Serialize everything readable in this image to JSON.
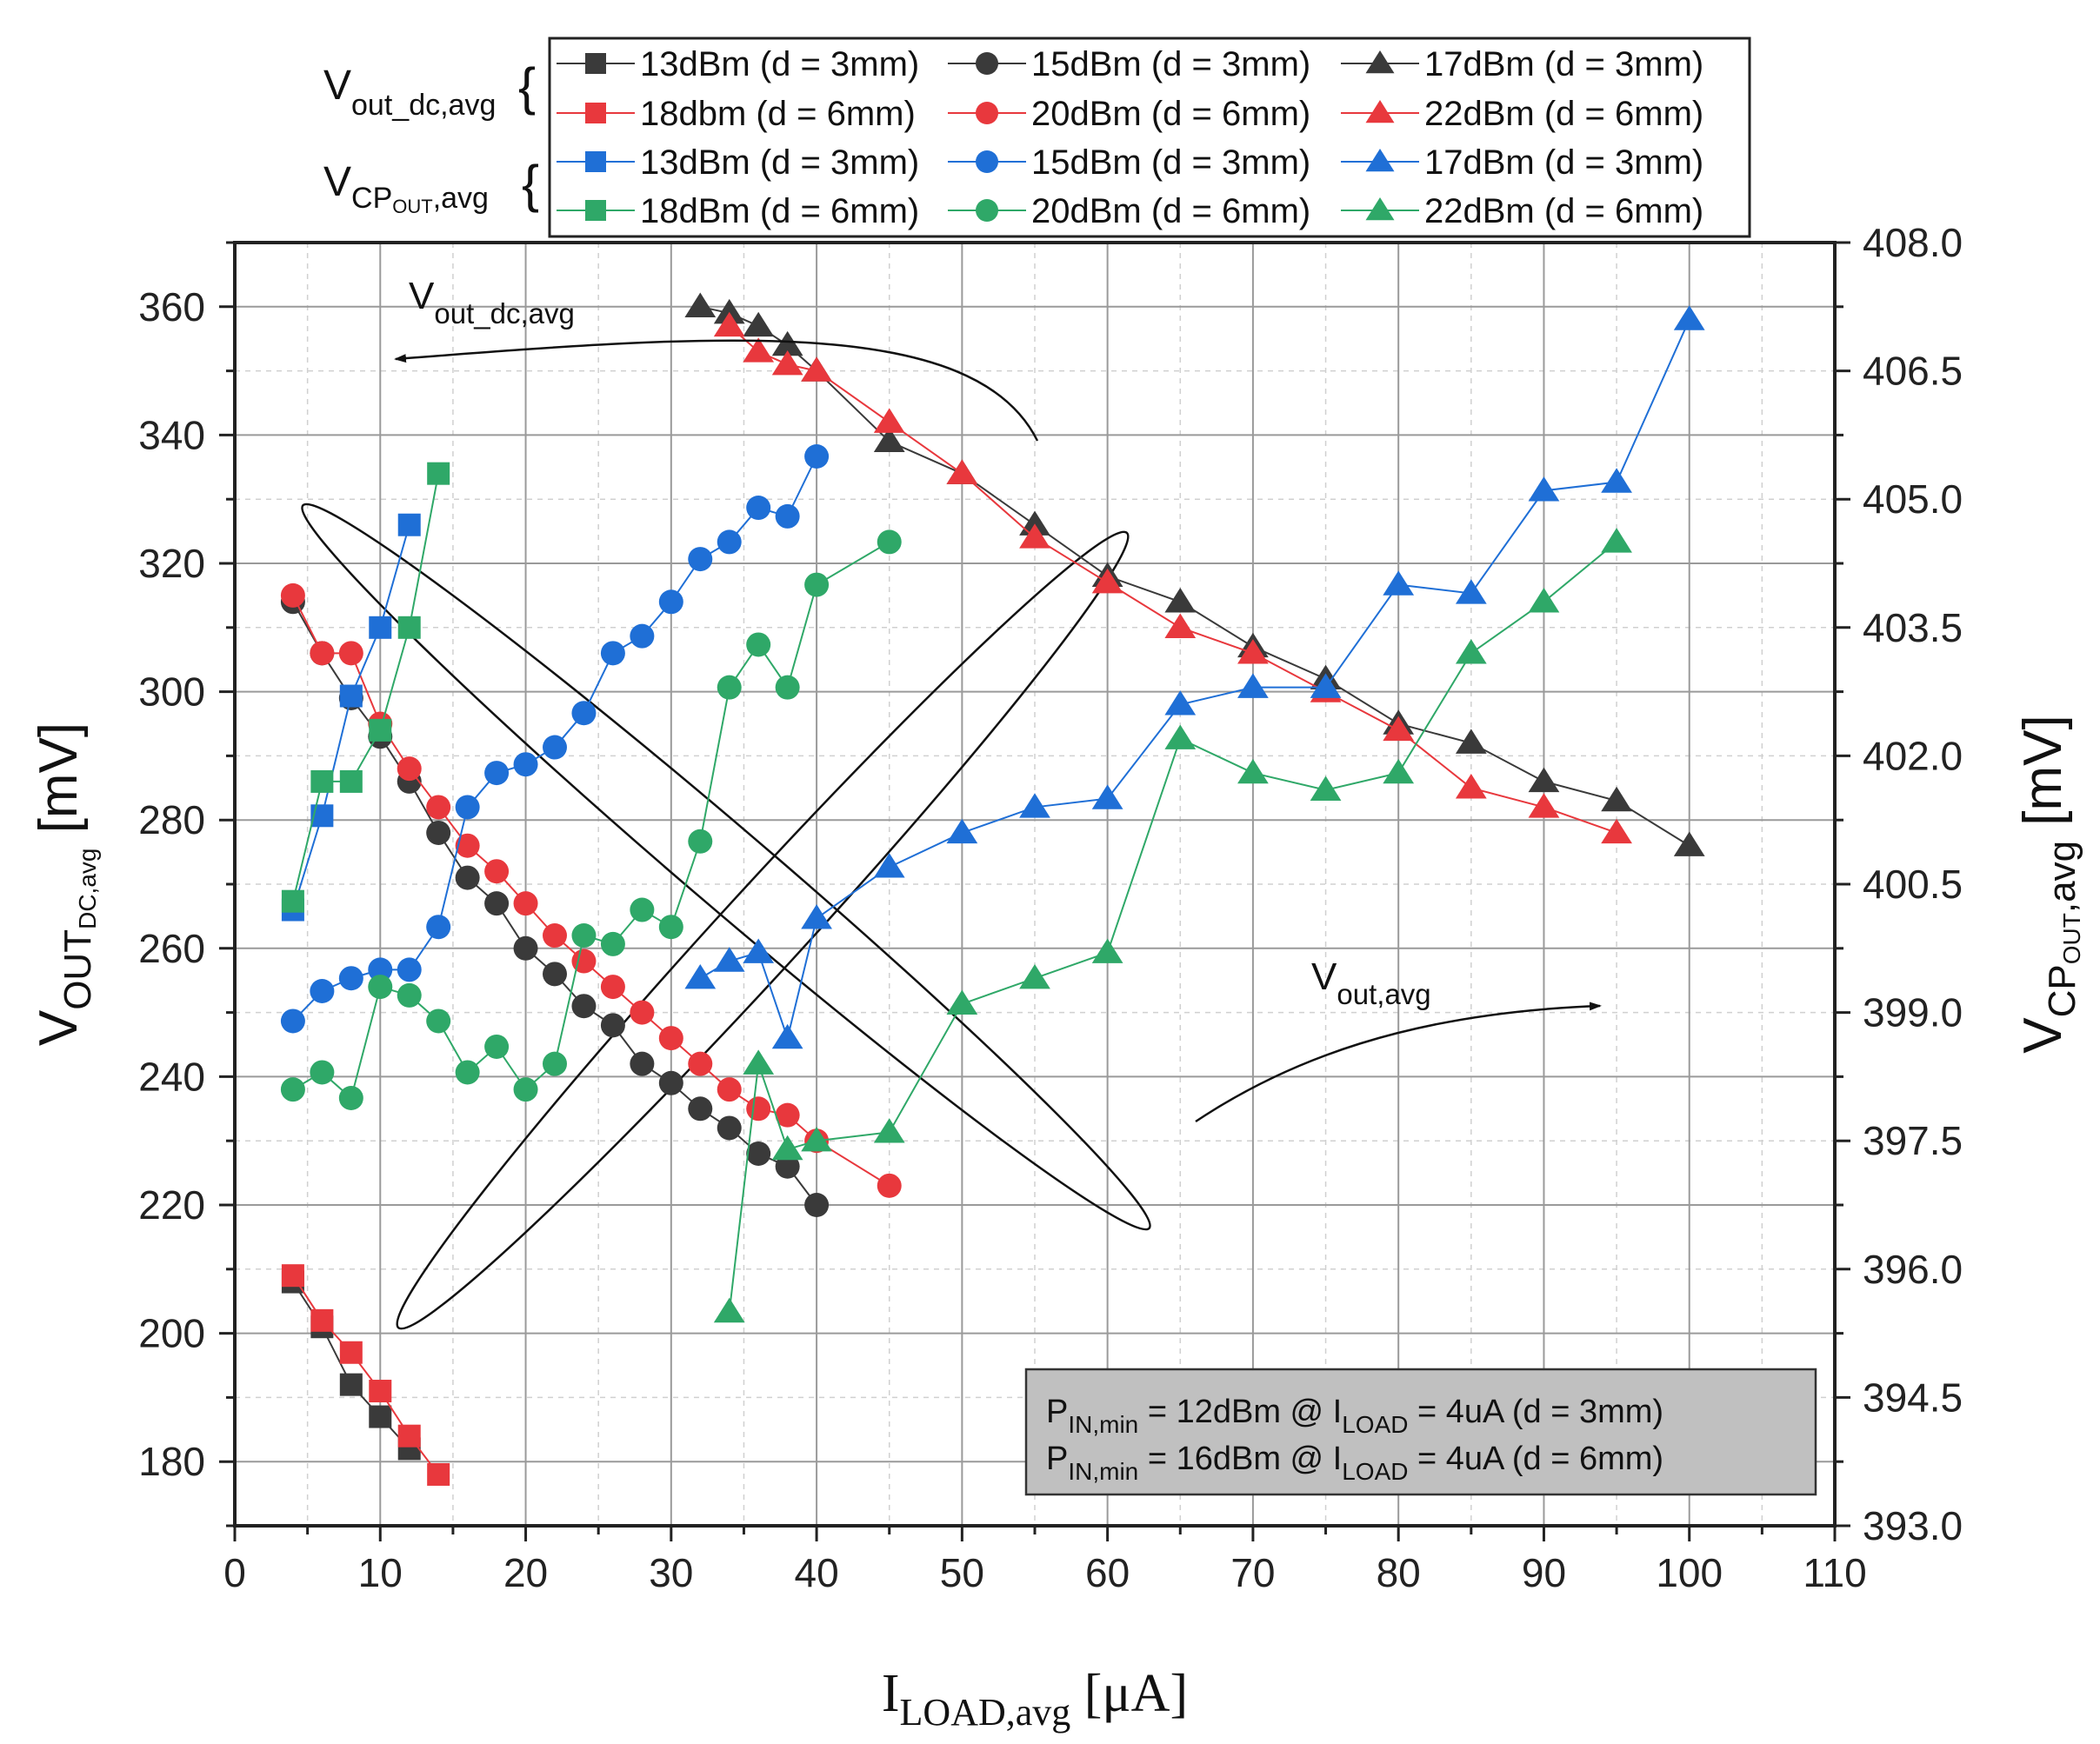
{
  "chart_data": {
    "type": "line",
    "xlabel": {
      "main": "I",
      "sub": "LOAD,avg",
      "unit": " [μA]"
    },
    "ylabel_left": {
      "main": "V",
      "sub1": "OUT",
      "sub2": "DC,avg",
      "unit": " [mV]"
    },
    "ylabel_right": {
      "main": "V",
      "sub1": "CP",
      "sub2": "OUT",
      "sub3": ",avg",
      "unit": " [mV]"
    },
    "xlim": [
      0,
      110
    ],
    "ylim_left": [
      170,
      370
    ],
    "ylim_right": [
      393.0,
      408.0
    ],
    "xticks": [
      "0",
      "10",
      "20",
      "30",
      "40",
      "50",
      "60",
      "70",
      "80",
      "90",
      "100",
      "110"
    ],
    "yticks_left": [
      "180",
      "200",
      "220",
      "240",
      "260",
      "280",
      "300",
      "320",
      "340",
      "360"
    ],
    "yticks_right": [
      "393.0",
      "394.5",
      "396.0",
      "397.5",
      "399.0",
      "400.5",
      "402.0",
      "403.5",
      "405.0",
      "406.5",
      "408.0"
    ],
    "legend": {
      "group1_label": {
        "main": "V",
        "sub": "out_dc,avg"
      },
      "group2_label": {
        "main": "V",
        "sub1": "CP",
        "sub2": "OUT",
        "sub3": ",avg"
      },
      "entries": [
        "13dBm (d = 3mm)",
        "15dBm (d = 3mm)",
        "17dBm (d = 3mm)",
        "18dbm (d = 6mm)",
        "20dBm (d = 6mm)",
        "22dBm (d = 6mm)",
        "13dBm (d = 3mm)",
        "15dBm (d = 3mm)",
        "17dBm (d = 3mm)",
        "18dBm (d = 6mm)",
        "20dBm (d = 6mm)",
        "22dBm (d = 6mm)"
      ]
    },
    "annotations": {
      "vout_dc": {
        "main": "V",
        "sub": "out_dc,avg"
      },
      "vout": {
        "main": "V",
        "sub": "out,avg"
      },
      "box_line1": {
        "a": "P",
        "b": "IN,min",
        "c": " = 12dBm @ I",
        "d": "LOAD",
        "e": " = 4uA (d = 3mm)"
      },
      "box_line2": {
        "a": "P",
        "b": "IN,min",
        "c": " = 16dBm @ I",
        "d": "LOAD",
        "e": " = 4uA (d = 6mm)"
      }
    },
    "colors": {
      "black": "#3a3a3a",
      "red": "#e8383d",
      "blue": "#1f6fd6",
      "green": "#2fa868",
      "box": "#c0c0c0"
    },
    "series": [
      {
        "name": "Vout_dc 13dBm (d = 3mm)",
        "axis": "left",
        "marker": "square",
        "color": "black",
        "x": [
          4,
          6,
          8,
          10,
          12
        ],
        "y": [
          208,
          201,
          192,
          187,
          182
        ]
      },
      {
        "name": "Vout_dc 15dBm (d = 3mm)",
        "axis": "left",
        "marker": "circle",
        "color": "black",
        "x": [
          4,
          6,
          8,
          10,
          12,
          14,
          16,
          18,
          20,
          22,
          24,
          26,
          28,
          30,
          32,
          34,
          36,
          38,
          40
        ],
        "y": [
          314,
          306,
          299,
          293,
          286,
          278,
          271,
          267,
          260,
          256,
          251,
          248,
          242,
          239,
          235,
          232,
          228,
          226,
          220
        ]
      },
      {
        "name": "Vout_dc 17dBm (d = 3mm)",
        "axis": "left",
        "marker": "triangle",
        "color": "black",
        "x": [
          32,
          34,
          36,
          38,
          40,
          45,
          50,
          55,
          60,
          65,
          70,
          75,
          80,
          85,
          90,
          95,
          100
        ],
        "y": [
          360,
          359,
          357,
          354,
          350,
          339,
          334,
          326,
          318,
          314,
          307,
          302,
          295,
          292,
          286,
          283,
          276
        ]
      },
      {
        "name": "Vout_dc 18dbm (d = 6mm)",
        "axis": "left",
        "marker": "square",
        "color": "red",
        "x": [
          4,
          6,
          8,
          10,
          12,
          14
        ],
        "y": [
          209,
          202,
          197,
          191,
          184,
          178
        ]
      },
      {
        "name": "Vout_dc 20dBm (d = 6mm)",
        "axis": "left",
        "marker": "circle",
        "color": "red",
        "x": [
          4,
          6,
          8,
          10,
          12,
          14,
          16,
          18,
          20,
          22,
          24,
          26,
          28,
          30,
          32,
          34,
          36,
          38,
          40,
          45
        ],
        "y": [
          315,
          306,
          306,
          295,
          288,
          282,
          276,
          272,
          267,
          262,
          258,
          254,
          250,
          246,
          242,
          238,
          235,
          234,
          230,
          223
        ]
      },
      {
        "name": "Vout_dc 22dBm (d = 6mm)",
        "axis": "left",
        "marker": "triangle",
        "color": "red",
        "x": [
          34,
          36,
          38,
          40,
          45,
          50,
          55,
          60,
          65,
          70,
          75,
          80,
          85,
          90,
          95
        ],
        "y": [
          357,
          353,
          351,
          350,
          342,
          334,
          324,
          317,
          310,
          306,
          300,
          294,
          285,
          282,
          278
        ]
      },
      {
        "name": "Vcp 13dBm (d = 3mm)",
        "axis": "right",
        "marker": "square",
        "color": "blue",
        "x": [
          4,
          6,
          8,
          10,
          12
        ],
        "y": [
          400.2,
          401.3,
          402.7,
          403.5,
          404.7
        ]
      },
      {
        "name": "Vcp 15dBm (d = 3mm)",
        "axis": "right",
        "marker": "circle",
        "color": "blue",
        "x": [
          4,
          6,
          8,
          10,
          12,
          14,
          16,
          18,
          20,
          22,
          24,
          26,
          28,
          30,
          32,
          34,
          36,
          38,
          40
        ],
        "y": [
          398.9,
          399.25,
          399.4,
          399.5,
          399.5,
          400.0,
          401.4,
          401.8,
          401.9,
          402.1,
          402.5,
          403.2,
          403.4,
          403.8,
          404.3,
          404.5,
          404.9,
          404.8,
          405.5
        ]
      },
      {
        "name": "Vcp 17dBm (d = 3mm)",
        "axis": "right",
        "marker": "triangle",
        "color": "blue",
        "x": [
          32,
          34,
          36,
          38,
          40,
          45,
          50,
          55,
          60,
          65,
          70,
          75,
          80,
          85,
          90,
          95,
          100
        ],
        "y": [
          399.4,
          399.6,
          399.7,
          398.7,
          400.1,
          400.7,
          401.1,
          401.4,
          401.5,
          402.6,
          402.8,
          402.8,
          404.0,
          403.9,
          405.1,
          405.2,
          407.1
        ]
      },
      {
        "name": "Vcp 18dBm (d = 6mm)",
        "axis": "right",
        "marker": "square",
        "color": "green",
        "x": [
          4,
          6,
          8,
          10,
          12,
          14
        ],
        "y": [
          400.3,
          401.7,
          401.7,
          402.3,
          403.5,
          405.3
        ]
      },
      {
        "name": "Vcp 20dBm (d = 6mm)",
        "axis": "right",
        "marker": "circle",
        "color": "green",
        "x": [
          4,
          6,
          8,
          10,
          12,
          14,
          16,
          18,
          20,
          22,
          24,
          26,
          28,
          30,
          32,
          34,
          36,
          38,
          40,
          45
        ],
        "y": [
          398.1,
          398.3,
          398.0,
          399.3,
          399.2,
          398.9,
          398.3,
          398.6,
          398.1,
          398.4,
          399.9,
          399.8,
          400.2,
          400.0,
          401.0,
          402.8,
          403.3,
          402.8,
          404.0,
          404.5
        ]
      },
      {
        "name": "Vcp 22dBm (d = 6mm)",
        "axis": "right",
        "marker": "triangle",
        "color": "green",
        "x": [
          34,
          36,
          38,
          40,
          45,
          50,
          55,
          60,
          65,
          70,
          75,
          80,
          85,
          90,
          95
        ],
        "y": [
          395.5,
          398.4,
          397.4,
          397.5,
          397.6,
          399.1,
          399.4,
          399.7,
          402.2,
          401.8,
          401.6,
          401.8,
          403.2,
          403.8,
          404.5
        ]
      }
    ]
  }
}
